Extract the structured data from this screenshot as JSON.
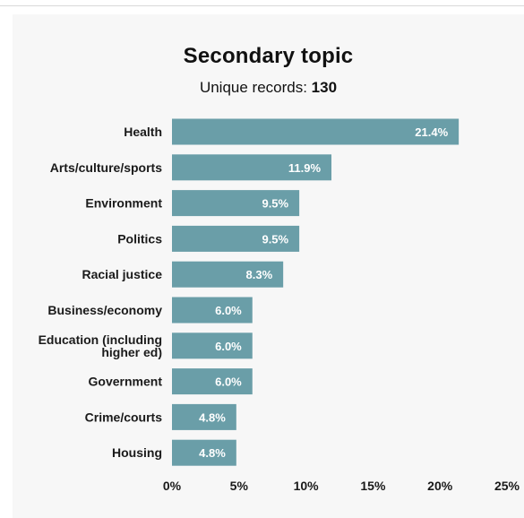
{
  "header": {
    "title": "Secondary topic",
    "subtitle_prefix": "Unique records: ",
    "subtitle_count": "130"
  },
  "colors": {
    "bar": "#6a9ea8",
    "panel_background": "#f7f7f7",
    "text": "#1a1a1a"
  },
  "chart_data": {
    "type": "bar",
    "orientation": "horizontal",
    "title": "Secondary topic",
    "subtitle": "Unique records: 130",
    "categories": [
      "Health",
      "Arts/culture/sports",
      "Environment",
      "Politics",
      "Racial justice",
      "Business/economy",
      "Education (including higher ed)",
      "Government",
      "Crime/courts",
      "Housing"
    ],
    "category_lines": [
      [
        "Health"
      ],
      [
        "Arts/culture/sports"
      ],
      [
        "Environment"
      ],
      [
        "Politics"
      ],
      [
        "Racial justice"
      ],
      [
        "Business/economy"
      ],
      [
        "Education (including",
        "higher ed)"
      ],
      [
        "Government"
      ],
      [
        "Crime/courts"
      ],
      [
        "Housing"
      ]
    ],
    "values": [
      21.4,
      11.9,
      9.5,
      9.5,
      8.3,
      6.0,
      6.0,
      6.0,
      4.8,
      4.8
    ],
    "value_labels": [
      "21.4%",
      "11.9%",
      "9.5%",
      "9.5%",
      "8.3%",
      "6.0%",
      "6.0%",
      "6.0%",
      "4.8%",
      "4.8%"
    ],
    "xlim": [
      0,
      25
    ],
    "x_ticks": [
      0,
      5,
      10,
      15,
      20,
      25
    ],
    "x_tick_labels": [
      "0%",
      "5%",
      "10%",
      "15%",
      "20%",
      "25%"
    ],
    "xlabel": "",
    "ylabel": "",
    "grid": false,
    "legend": "none"
  }
}
